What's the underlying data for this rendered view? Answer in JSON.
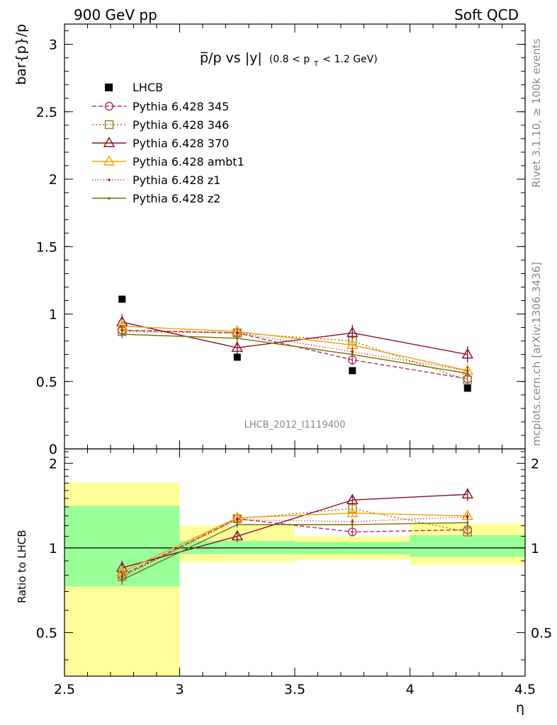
{
  "header": {
    "left": "900 GeV pp",
    "right": "Soft QCD"
  },
  "side_labels": {
    "rivet": "Rivet 3.1.10, ≥ 100k events",
    "mcplots": "mcplots.cern.ch [arXiv:1306.3436]"
  },
  "watermark": "LHCB_2012_I1119400",
  "chart_data": [
    {
      "panel": "main",
      "type": "line",
      "title_main": "p̅/p vs |y|",
      "title_sub": "(0.8 < p",
      "title_sub_index": "T",
      "title_sub_end": " < 1.2 GeV)",
      "ylabel": "bar{p}/p",
      "xlim": [
        2.5,
        4.5
      ],
      "ylim": [
        0,
        3.15
      ],
      "yticks": [
        0,
        0.5,
        1,
        1.5,
        2,
        2.5,
        3
      ],
      "ytick_labels": [
        "0",
        "0.5",
        "1",
        "1.5",
        "2",
        "2.5",
        "3"
      ],
      "x": [
        2.75,
        3.25,
        3.75,
        4.25
      ],
      "data": {
        "name": "LHCB",
        "values": [
          1.11,
          0.68,
          0.58,
          0.45
        ],
        "color": "#000000"
      },
      "series": [
        {
          "name": "Pythia 6.428 345",
          "values": [
            0.88,
            0.86,
            0.66,
            0.52
          ],
          "err": [
            0.04,
            0.04,
            0.04,
            0.04
          ],
          "color": "#b03060",
          "dash": "6,3",
          "marker": "circle"
        },
        {
          "name": "Pythia 6.428 346",
          "values": [
            0.87,
            0.86,
            0.8,
            0.51
          ],
          "err": [
            0.04,
            0.05,
            0.05,
            0.04
          ],
          "color": "#9c7a28",
          "dash": "2,3",
          "marker": "square"
        },
        {
          "name": "Pythia 6.428 370",
          "values": [
            0.94,
            0.75,
            0.86,
            0.7
          ],
          "err": [
            0.06,
            0.05,
            0.06,
            0.06
          ],
          "color": "#8b0a2a",
          "dash": "",
          "marker": "triangle"
        },
        {
          "name": "Pythia 6.428 ambt1",
          "values": [
            0.91,
            0.87,
            0.77,
            0.58
          ],
          "err": [
            0.04,
            0.04,
            0.04,
            0.04
          ],
          "color": "#f5a000",
          "dash": "",
          "marker": "triangle"
        },
        {
          "name": "Pythia 6.428 z1",
          "values": [
            0.88,
            0.86,
            0.72,
            0.58
          ],
          "err": [
            0.03,
            0.03,
            0.03,
            0.03
          ],
          "color": "#cc0000",
          "dash": "1,3",
          "marker": "dot"
        },
        {
          "name": "Pythia 6.428 z2",
          "values": [
            0.85,
            0.82,
            0.7,
            0.56
          ],
          "err": [
            0.03,
            0.03,
            0.03,
            0.03
          ],
          "color": "#707000",
          "dash": "",
          "marker": "dot"
        }
      ]
    },
    {
      "panel": "ratio",
      "type": "line",
      "ylabel": "Ratio to LHCB",
      "xlabel": "η",
      "xlim": [
        2.5,
        4.5
      ],
      "ylim": [
        0.35,
        2.25
      ],
      "xticks": [
        2.5,
        3,
        3.5,
        4,
        4.5
      ],
      "xtick_labels": [
        "2.5",
        "3",
        "3.5",
        "4",
        "4.5"
      ],
      "yticks": [
        0.5,
        1,
        2
      ],
      "ytick_labels": [
        "0.5",
        "1",
        "2"
      ],
      "bands": [
        {
          "x0": 2.5,
          "x1": 3.0,
          "inner": [
            0.73,
            1.41
          ],
          "outer": [
            0.35,
            1.71
          ]
        },
        {
          "x0": 3.0,
          "x1": 3.5,
          "inner": [
            0.95,
            1.06
          ],
          "outer": [
            0.89,
            1.2
          ]
        },
        {
          "x0": 3.5,
          "x1": 4.0,
          "inner": [
            0.95,
            1.05
          ],
          "outer": [
            0.91,
            1.1
          ]
        },
        {
          "x0": 4.0,
          "x1": 4.5,
          "inner": [
            0.93,
            1.11
          ],
          "outer": [
            0.87,
            1.22
          ]
        }
      ],
      "x": [
        2.75,
        3.25,
        3.75,
        4.25
      ],
      "series": [
        {
          "name": "Pythia 6.428 345",
          "values": [
            0.8,
            1.27,
            1.14,
            1.16
          ],
          "err": [
            0.04,
            0.04,
            0.04,
            0.04
          ],
          "color": "#b03060",
          "dash": "6,3",
          "marker": "circle"
        },
        {
          "name": "Pythia 6.428 346",
          "values": [
            0.79,
            1.27,
            1.38,
            1.14
          ],
          "err": [
            0.04,
            0.04,
            0.04,
            0.04
          ],
          "color": "#9c7a28",
          "dash": "2,3",
          "marker": "square"
        },
        {
          "name": "Pythia 6.428 370",
          "values": [
            0.85,
            1.1,
            1.48,
            1.55
          ],
          "err": [
            0.05,
            0.05,
            0.05,
            0.08
          ],
          "color": "#8b0a2a",
          "dash": "",
          "marker": "triangle"
        },
        {
          "name": "Pythia 6.428 ambt1",
          "values": [
            0.82,
            1.28,
            1.33,
            1.3
          ],
          "err": [
            0.04,
            0.04,
            0.04,
            0.04
          ],
          "color": "#f5a000",
          "dash": "",
          "marker": "triangle"
        },
        {
          "name": "Pythia 6.428 z1",
          "values": [
            0.79,
            1.26,
            1.24,
            1.29
          ],
          "err": [
            0.03,
            0.03,
            0.03,
            0.03
          ],
          "color": "#cc0000",
          "dash": "1,3",
          "marker": "dot"
        },
        {
          "name": "Pythia 6.428 z2",
          "values": [
            0.77,
            1.21,
            1.21,
            1.23
          ],
          "err": [
            0.03,
            0.03,
            0.03,
            0.03
          ],
          "color": "#707000",
          "dash": "",
          "marker": "dot"
        }
      ]
    }
  ]
}
